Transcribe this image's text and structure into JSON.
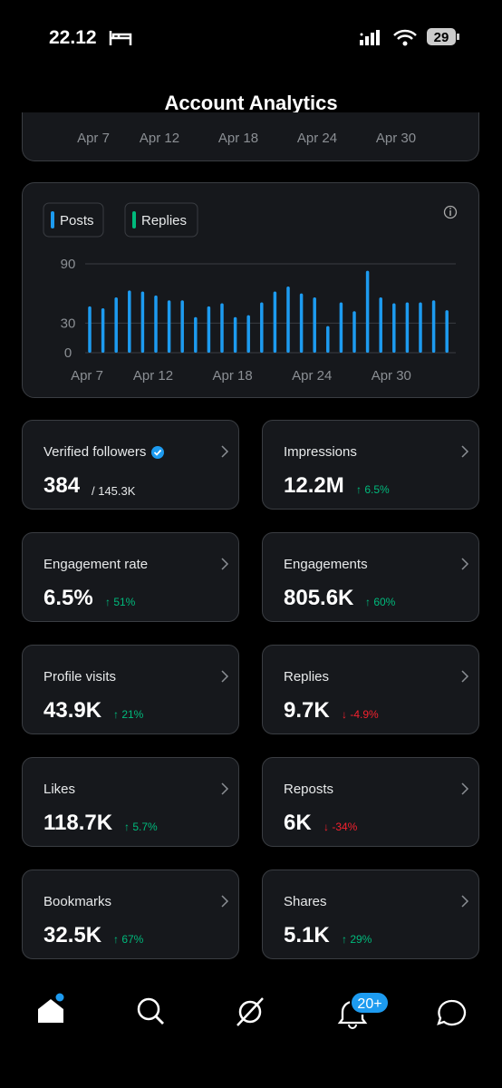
{
  "status_bar": {
    "time": "22.12",
    "battery": "29"
  },
  "header": {
    "title": "Account Analytics"
  },
  "top_card": {
    "x_labels": [
      "Apr 7",
      "Apr 12",
      "Apr 18",
      "Apr 24",
      "Apr 30"
    ]
  },
  "chart": {
    "type": "bar",
    "legend": [
      {
        "name": "Posts",
        "color": "#1d9bf0"
      },
      {
        "name": "Replies",
        "color": "#00ba7c"
      }
    ],
    "categories": [
      "Apr 7",
      null,
      null,
      null,
      null,
      "Apr 12",
      null,
      null,
      null,
      null,
      null,
      "Apr 18",
      null,
      null,
      null,
      null,
      null,
      "Apr 24",
      null,
      null,
      null,
      null,
      null,
      "Apr 30",
      null,
      null,
      null,
      null
    ],
    "series": [
      {
        "name": "Posts",
        "color": "#1d9bf0",
        "values": [
          47,
          45,
          56,
          63,
          62,
          58,
          53,
          53,
          36,
          47,
          50,
          36,
          38,
          51,
          62,
          67,
          60,
          56,
          27,
          51,
          42,
          83,
          56,
          50,
          51,
          51,
          53,
          43
        ]
      }
    ],
    "ylim": [
      0,
      90
    ],
    "yticks": [
      0,
      30,
      90
    ],
    "grid": true
  },
  "cards": [
    {
      "label": "Verified followers",
      "verified": true,
      "value": "384",
      "sub": "/ 145.3K"
    },
    {
      "label": "Impressions",
      "value": "12.2M",
      "change": "↑ 6.5%",
      "color": "#00ba7c"
    },
    {
      "label": "Engagement rate",
      "value": "6.5%",
      "change": "↑ 51%",
      "color": "#00ba7c"
    },
    {
      "label": "Engagements",
      "value": "805.6K",
      "change": "↑ 60%",
      "color": "#00ba7c"
    },
    {
      "label": "Profile visits",
      "value": "43.9K",
      "change": "↑ 21%",
      "color": "#00ba7c"
    },
    {
      "label": "Replies",
      "value": "9.7K",
      "change": "↓ -4.9%",
      "color": "#f4212e"
    },
    {
      "label": "Likes",
      "value": "118.7K",
      "change": "↑ 5.7%",
      "color": "#00ba7c"
    },
    {
      "label": "Reposts",
      "value": "6K",
      "change": "↓ -34%",
      "color": "#f4212e"
    },
    {
      "label": "Bookmarks",
      "value": "32.5K",
      "change": "↑ 67%",
      "color": "#00ba7c"
    },
    {
      "label": "Shares",
      "value": "5.1K",
      "change": "↑ 29%",
      "color": "#00ba7c"
    }
  ],
  "nav": {
    "badge": "20+"
  }
}
